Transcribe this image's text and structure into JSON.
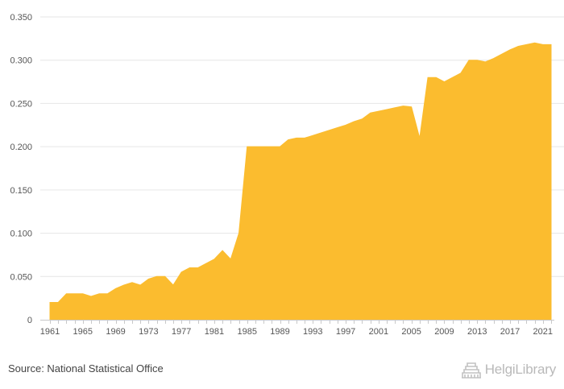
{
  "chart_data": {
    "type": "area",
    "color": "#fbbc2f",
    "grid": true,
    "ylim": [
      0,
      0.35
    ],
    "y_ticks": [
      "0",
      "0.050",
      "0.100",
      "0.150",
      "0.200",
      "0.250",
      "0.300",
      "0.350"
    ],
    "y_tick_values": [
      0,
      0.05,
      0.1,
      0.15,
      0.2,
      0.25,
      0.3,
      0.35
    ],
    "x_tick_labels": [
      "1961",
      "1965",
      "1969",
      "1973",
      "1977",
      "1981",
      "1985",
      "1989",
      "1993",
      "1997",
      "2001",
      "2005",
      "2009",
      "2013",
      "2017",
      "2021"
    ],
    "x": [
      1961,
      1962,
      1963,
      1964,
      1965,
      1966,
      1967,
      1968,
      1969,
      1970,
      1971,
      1972,
      1973,
      1974,
      1975,
      1976,
      1977,
      1978,
      1979,
      1980,
      1981,
      1982,
      1983,
      1984,
      1985,
      1986,
      1987,
      1988,
      1989,
      1990,
      1991,
      1992,
      1993,
      1994,
      1995,
      1996,
      1997,
      1998,
      1999,
      2000,
      2001,
      2002,
      2003,
      2004,
      2005,
      2006,
      2007,
      2008,
      2009,
      2010,
      2011,
      2012,
      2013,
      2014,
      2015,
      2016,
      2017,
      2018,
      2019,
      2020,
      2021,
      2022
    ],
    "values": [
      0.02,
      0.02,
      0.03,
      0.03,
      0.03,
      0.027,
      0.03,
      0.03,
      0.036,
      0.04,
      0.043,
      0.04,
      0.047,
      0.05,
      0.05,
      0.04,
      0.055,
      0.06,
      0.06,
      0.065,
      0.07,
      0.08,
      0.07,
      0.1,
      0.2,
      0.2,
      0.2,
      0.2,
      0.2,
      0.208,
      0.21,
      0.21,
      0.213,
      0.216,
      0.219,
      0.222,
      0.225,
      0.229,
      0.232,
      0.239,
      0.241,
      0.243,
      0.245,
      0.247,
      0.246,
      0.21,
      0.28,
      0.28,
      0.275,
      0.28,
      0.285,
      0.3,
      0.3,
      0.298,
      0.302,
      0.307,
      0.312,
      0.316,
      0.318,
      0.32,
      0.318,
      0.318
    ]
  },
  "footer": {
    "source": "Source: National Statistical Office",
    "logo_text": "HelgiLibrary",
    "logo_icon": "library-building-icon"
  }
}
